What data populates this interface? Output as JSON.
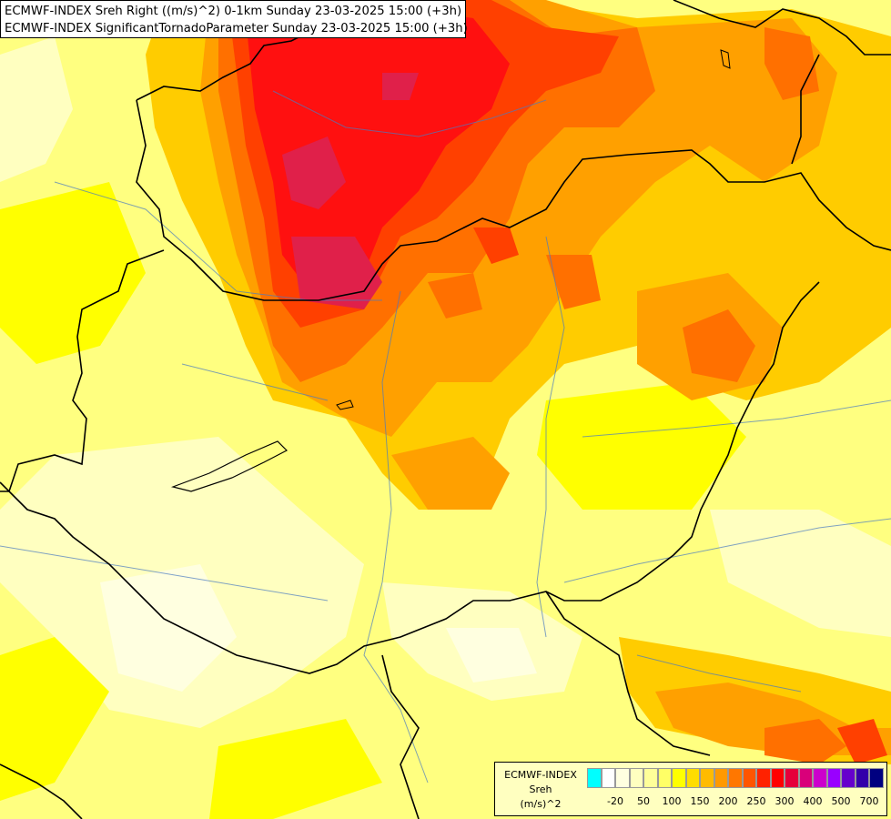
{
  "titles": {
    "line1": "ECMWF-INDEX Sreh Right ((m/s)^2) 0-1km Sunday 23-03-2025 15:00 (+3h)",
    "line2": "ECMWF-INDEX SignificantTornadoParameter Sunday 23-03-2025 15:00 (+3h)"
  },
  "legend": {
    "source": "ECMWF-INDEX",
    "variable": "Sreh",
    "unit": "(m/s)^2",
    "colors": [
      "#00ffff",
      "#ffffff",
      "#ffffe0",
      "#ffffc0",
      "#ffff99",
      "#ffff66",
      "#ffff00",
      "#ffdd00",
      "#ffbb00",
      "#ff9900",
      "#ff7700",
      "#ff5500",
      "#ff2200",
      "#ff0000",
      "#e6003a",
      "#d9007a",
      "#cc00cc",
      "#9900ff",
      "#6600cc",
      "#3300aa",
      "#000080"
    ],
    "ticks": [
      {
        "label": "-20",
        "index": 1
      },
      {
        "label": "50",
        "index": 3
      },
      {
        "label": "100",
        "index": 5
      },
      {
        "label": "150",
        "index": 7
      },
      {
        "label": "200",
        "index": 9
      },
      {
        "label": "250",
        "index": 11
      },
      {
        "label": "300",
        "index": 13
      },
      {
        "label": "400",
        "index": 15
      },
      {
        "label": "500",
        "index": 17
      },
      {
        "label": "700",
        "index": 19
      }
    ]
  }
}
